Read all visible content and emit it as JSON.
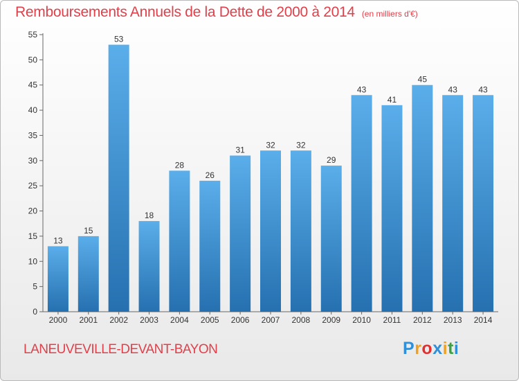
{
  "title": "Remboursements Annuels de la Dette de 2000 à 2014",
  "subtitle": "(en milliers d'€)",
  "commune": "LANEUVEVILLE-DEVANT-BAYON",
  "logo": {
    "letters": [
      "P",
      "r",
      "o",
      "x",
      "i",
      "t",
      "i"
    ],
    "colors": [
      "#2f8fd8",
      "#f0a020",
      "#e03030",
      "#2f8fd8",
      "#f0a020",
      "#3aa040",
      "#2f8fd8"
    ]
  },
  "colors": {
    "bar_top": "#5aaeea",
    "bar_bottom": "#2670b0",
    "title": "#e0404a"
  },
  "chart_data": {
    "type": "bar",
    "title": "Remboursements Annuels de la Dette de 2000 à 2014",
    "subtitle": "(en milliers d'€)",
    "categories": [
      "2000",
      "2001",
      "2002",
      "2003",
      "2004",
      "2005",
      "2006",
      "2007",
      "2008",
      "2009",
      "2010",
      "2011",
      "2012",
      "2013",
      "2014"
    ],
    "values": [
      13,
      15,
      53,
      18,
      28,
      26,
      31,
      32,
      32,
      29,
      43,
      41,
      45,
      43,
      43
    ],
    "ylim": [
      0,
      55
    ],
    "yticks": [
      0,
      5,
      10,
      15,
      20,
      25,
      30,
      35,
      40,
      45,
      50,
      55
    ],
    "grid": false,
    "data_labels": true
  }
}
